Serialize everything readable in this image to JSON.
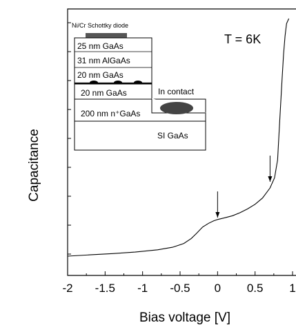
{
  "chart_data": {
    "type": "line",
    "title": "",
    "xlabel": "Bias voltage [V]",
    "ylabel": "Capacitance",
    "xlim": [
      -2,
      1
    ],
    "x_ticks": [
      -2,
      -1.5,
      -1,
      -0.5,
      0,
      0.5,
      1
    ],
    "x_tick_labels": [
      "-2",
      "-1.5",
      "-1",
      "-0.5",
      "0",
      "0.5",
      "1"
    ],
    "y_ticks_shown": false,
    "ylim": [
      0,
      1
    ],
    "series": [
      {
        "x": [
          -2.0,
          -1.7,
          -1.4,
          -1.1,
          -0.8,
          -0.6,
          -0.45,
          -0.35,
          -0.28,
          -0.2,
          -0.12,
          -0.05,
          0.0,
          0.1,
          0.2,
          0.3,
          0.4,
          0.5,
          0.6,
          0.7,
          0.76,
          0.8,
          0.83,
          0.86,
          0.88,
          0.9,
          0.92,
          0.95
        ],
        "y": [
          0.06,
          0.065,
          0.07,
          0.076,
          0.085,
          0.095,
          0.11,
          0.13,
          0.15,
          0.175,
          0.19,
          0.2,
          0.205,
          0.212,
          0.22,
          0.232,
          0.247,
          0.265,
          0.29,
          0.33,
          0.37,
          0.44,
          0.6,
          0.76,
          0.86,
          0.93,
          0.98,
          1.0
        ]
      }
    ],
    "annotations": {
      "temperature": "T = 6K",
      "arrows_at_x": [
        0.0,
        0.7
      ]
    },
    "inset": {
      "top_label": "Ni/Cr Schottky diode",
      "layers": [
        "25 nm GaAs",
        "31 nm AlGaAs",
        "20 nm GaAs",
        "20 nm GaAs",
        "200 nm n⁺GaAs",
        "SI GaAs"
      ],
      "contact_label": "In contact"
    }
  }
}
